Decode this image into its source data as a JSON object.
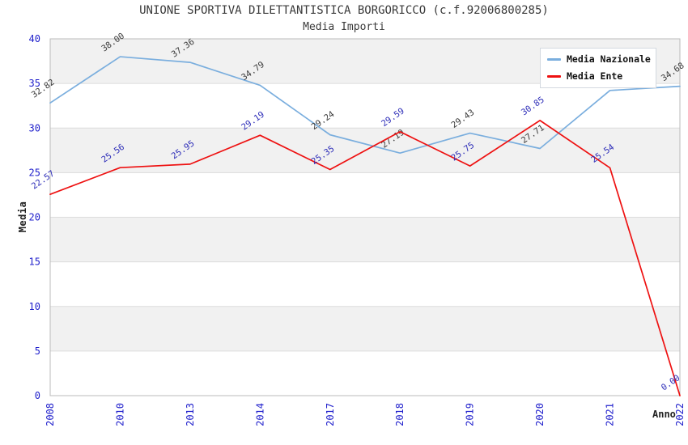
{
  "header": {
    "title": "UNIONE SPORTIVA DILETTANTISTICA BORGORICCO (c.f.92006800285)",
    "subtitle": "Media Importi"
  },
  "colors": {
    "tick_label": "#2121cc",
    "band_fill": "#f1f1f1",
    "gridline": "#dcdcdc",
    "plot_border": "#bbbbbb",
    "nazionale_line": "#7aaede",
    "ente_line": "#ee1111",
    "nazionale_point_label": "#3a3a3a",
    "ente_point_label": "#2d2db8"
  },
  "chart_data": {
    "type": "line",
    "title": "UNIONE SPORTIVA DILETTANTISTICA BORGORICCO (c.f.92006800285)",
    "subtitle": "Media Importi",
    "xlabel": "Anno",
    "ylabel": "Media",
    "ylim": [
      0,
      40
    ],
    "ytick_step": 5,
    "yticks": [
      0,
      5,
      10,
      15,
      20,
      25,
      30,
      35,
      40
    ],
    "grid": "horizontal-bands-alternating",
    "legend_position": "top-right",
    "categories": [
      "2008",
      "2010",
      "2013",
      "2014",
      "2017",
      "2018",
      "2019",
      "2020",
      "2021",
      "2022"
    ],
    "series": [
      {
        "name": "Media Nazionale",
        "color": "#7aaede",
        "label_color": "#3a3a3a",
        "values": [
          32.82,
          38.0,
          37.36,
          34.79,
          29.24,
          27.19,
          29.43,
          27.71,
          34.21,
          34.68
        ],
        "point_labels": [
          "32.82",
          "38.00",
          "37.36",
          "34.79",
          "29.24",
          "27.19",
          "29.43",
          "27.71",
          "",
          "34.68"
        ],
        "note": "2021 point label hidden behind legend in source image; value estimated from line position"
      },
      {
        "name": "Media Ente",
        "color": "#ee1111",
        "label_color": "#2d2db8",
        "values": [
          22.57,
          25.56,
          25.95,
          29.19,
          25.35,
          29.59,
          25.75,
          30.85,
          25.54,
          0.0
        ],
        "point_labels": [
          "22.57",
          "25.56",
          "25.95",
          "29.19",
          "25.35",
          "29.59",
          "25.75",
          "30.85",
          "25.54",
          "0.00"
        ]
      }
    ]
  }
}
